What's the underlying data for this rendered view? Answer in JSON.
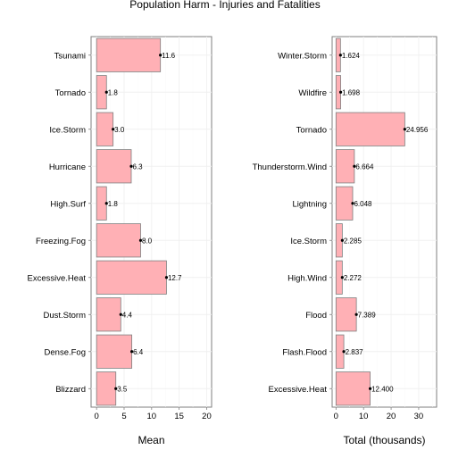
{
  "title": "Population Harm - Injuries and Fatalities",
  "chart_data": [
    {
      "type": "bar",
      "orientation": "horizontal",
      "categories": [
        "Tsunami",
        "Tornado",
        "Ice.Storm",
        "Hurricane",
        "High.Surf",
        "Freezing.Fog",
        "Excessive.Heat",
        "Dust.Storm",
        "Dense.Fog",
        "Blizzard"
      ],
      "values": [
        11.6,
        1.8,
        3.0,
        6.3,
        1.8,
        8.0,
        12.7,
        4.4,
        6.4,
        3.5
      ],
      "value_labels": [
        "11.6",
        "1.8",
        "3.0",
        "6.3",
        "1.8",
        "8.0",
        "12.7",
        "4.4",
        "6.4",
        "3.5"
      ],
      "xlabel": "Mean",
      "ylabel": "",
      "xlim": [
        -1,
        20.9
      ],
      "xticks": [
        0,
        5,
        10,
        15,
        20
      ],
      "xtick_labels": [
        "0",
        "5",
        "10",
        "15",
        "20"
      ],
      "grid": true
    },
    {
      "type": "bar",
      "orientation": "horizontal",
      "categories": [
        "Winter.Storm",
        "Wildfire",
        "Tornado",
        "Thunderstorm.Wind",
        "Lightning",
        "Ice.Storm",
        "High.Wind",
        "Flood",
        "Flash.Flood",
        "Excessive.Heat"
      ],
      "values": [
        1.624,
        1.698,
        24.956,
        6.664,
        6.048,
        2.285,
        2.272,
        7.389,
        2.837,
        12.4
      ],
      "value_labels": [
        "1.624",
        "1.698",
        "24.956",
        "6.664",
        "6.048",
        "2.285",
        "2.272",
        "7.389",
        "2.837",
        "12.400"
      ],
      "xlabel": "Total (thousands)",
      "ylabel": "",
      "xlim": [
        -1.4,
        36.5
      ],
      "xticks": [
        0,
        10,
        20,
        30
      ],
      "xtick_labels": [
        "0",
        "10",
        "20",
        "30"
      ],
      "grid": true
    }
  ]
}
